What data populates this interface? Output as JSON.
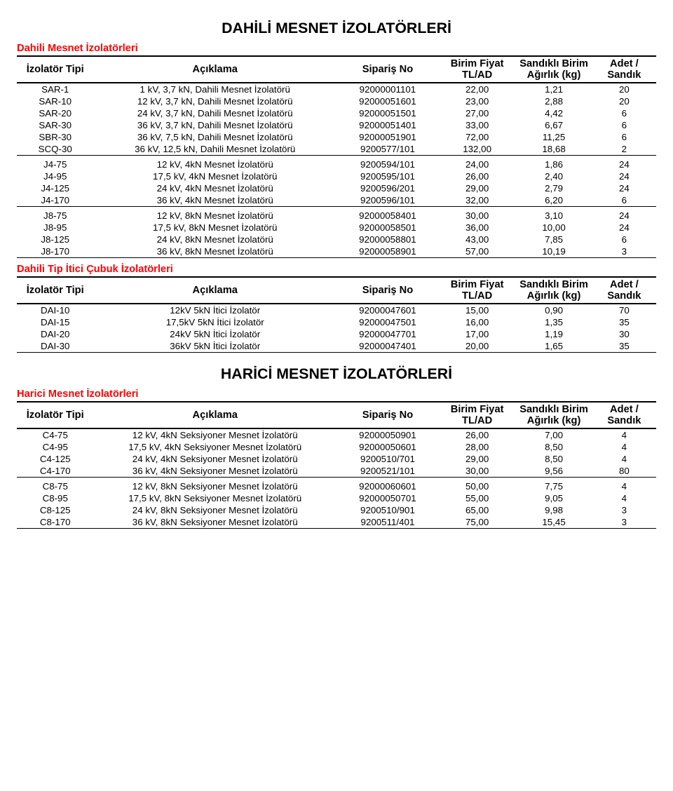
{
  "fonts": {
    "title_size_pt": 16,
    "section_size_pt": 11,
    "header_size_pt": 11,
    "body_size_pt": 10
  },
  "colors": {
    "heading": "#ff0000",
    "text": "#000000",
    "rule": "#000000",
    "background": "#ffffff"
  },
  "col_widths_pct": [
    12,
    38,
    16,
    12,
    12,
    10
  ],
  "titles": {
    "main1": "DAHİLİ MESNET İZOLATÖRLERİ",
    "main2": "HARİCİ MESNET İZOLATÖRLERİ"
  },
  "headers": {
    "type": "İzolatör Tipi",
    "desc": "Açıklama",
    "order": "Sipariş No",
    "price": "Birim Fiyat TL/AD",
    "weight": "Sandıklı Birim Ağırlık (kg)",
    "qty": "Adet / Sandık"
  },
  "sections": [
    {
      "heading": "Dahili Mesnet İzolatörleri",
      "groups": [
        {
          "rows": [
            [
              "SAR-1",
              "1 kV, 3,7 kN, Dahili Mesnet İzolatörü",
              "92000001101",
              "22,00",
              "1,21",
              "20"
            ],
            [
              "SAR-10",
              "12 kV, 3,7 kN, Dahili Mesnet İzolatörü",
              "92000051601",
              "23,00",
              "2,88",
              "20"
            ],
            [
              "SAR-20",
              "24 kV, 3,7 kN, Dahili Mesnet İzolatörü",
              "92000051501",
              "27,00",
              "4,42",
              "6"
            ],
            [
              "SAR-30",
              "36 kV, 3,7 kN, Dahili Mesnet İzolatörü",
              "92000051401",
              "33,00",
              "6,67",
              "6"
            ],
            [
              "SBR-30",
              "36 kV, 7,5 kN, Dahili Mesnet İzolatörü",
              "92000051901",
              "72,00",
              "11,25",
              "6"
            ],
            [
              "SCQ-30",
              "36 kV, 12,5 kN, Dahili Mesnet İzolatörü",
              "9200577/101",
              "132,00",
              "18,68",
              "2"
            ]
          ]
        },
        {
          "rows": [
            [
              "J4-75",
              "12 kV, 4kN Mesnet İzolatörü",
              "9200594/101",
              "24,00",
              "1,86",
              "24"
            ],
            [
              "J4-95",
              "17,5 kV, 4kN Mesnet İzolatörü",
              "9200595/101",
              "26,00",
              "2,40",
              "24"
            ],
            [
              "J4-125",
              "24 kV, 4kN Mesnet İzolatörü",
              "9200596/201",
              "29,00",
              "2,79",
              "24"
            ],
            [
              "J4-170",
              "36 kV, 4kN Mesnet İzolatörü",
              "9200596/101",
              "32,00",
              "6,20",
              "6"
            ]
          ]
        },
        {
          "rows": [
            [
              "J8-75",
              "12 kV, 8kN Mesnet İzolatörü",
              "92000058401",
              "30,00",
              "3,10",
              "24"
            ],
            [
              "J8-95",
              "17,5 kV, 8kN Mesnet İzolatörü",
              "92000058501",
              "36,00",
              "10,00",
              "24"
            ],
            [
              "J8-125",
              "24 kV, 8kN Mesnet İzolatörü",
              "92000058801",
              "43,00",
              "7,85",
              "6"
            ],
            [
              "J8-170",
              "36 kV, 8kN Mesnet İzolatörü",
              "92000058901",
              "57,00",
              "10,19",
              "3"
            ]
          ]
        }
      ]
    },
    {
      "heading": "Dahili Tip İtici Çubuk İzolatörleri",
      "groups": [
        {
          "rows": [
            [
              "DAI-10",
              "12kV 5kN İtici İzolatör",
              "92000047601",
              "15,00",
              "0,90",
              "70"
            ],
            [
              "DAI-15",
              "17,5kV 5kN İtici İzolatör",
              "92000047501",
              "16,00",
              "1,35",
              "35"
            ],
            [
              "DAI-20",
              "24kV 5kN İtici İzolatör",
              "92000047701",
              "17,00",
              "1,19",
              "30"
            ],
            [
              "DAI-30",
              "36kV 5kN İtici İzolatör",
              "92000047401",
              "20,00",
              "1,65",
              "35"
            ]
          ]
        }
      ]
    },
    {
      "heading": "Harici Mesnet İzolatörleri",
      "groups": [
        {
          "rows": [
            [
              "C4-75",
              "12 kV, 4kN Seksiyoner Mesnet İzolatörü",
              "92000050901",
              "26,00",
              "7,00",
              "4"
            ],
            [
              "C4-95",
              "17,5 kV, 4kN Seksiyoner Mesnet İzolatörü",
              "92000050601",
              "28,00",
              "8,50",
              "4"
            ],
            [
              "C4-125",
              "24 kV, 4kN Seksiyoner Mesnet İzolatörü",
              "9200510/701",
              "29,00",
              "8,50",
              "4"
            ],
            [
              "C4-170",
              "36 kV, 4kN Seksiyoner Mesnet İzolatörü",
              "9200521/101",
              "30,00",
              "9,56",
              "80"
            ]
          ]
        },
        {
          "rows": [
            [
              "C8-75",
              "12 kV, 8kN Seksiyoner Mesnet İzolatörü",
              "92000060601",
              "50,00",
              "7,75",
              "4"
            ],
            [
              "C8-95",
              "17,5 kV, 8kN Seksiyoner Mesnet İzolatörü",
              "92000050701",
              "55,00",
              "9,05",
              "4"
            ],
            [
              "C8-125",
              "24 kV, 8kN Seksiyoner Mesnet İzolatörü",
              "9200510/901",
              "65,00",
              "9,98",
              "3"
            ],
            [
              "C8-170",
              "36 kV, 8kN Seksiyoner Mesnet İzolatörü",
              "9200511/401",
              "75,00",
              "15,45",
              "3"
            ]
          ]
        }
      ]
    }
  ]
}
